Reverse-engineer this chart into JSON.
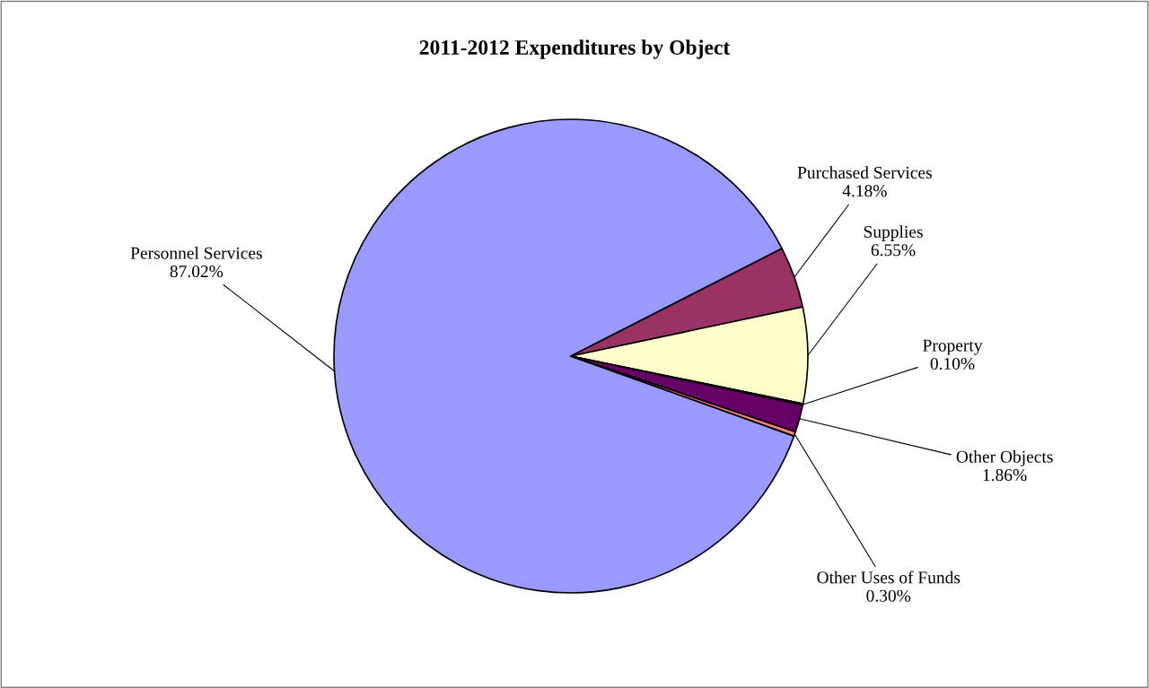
{
  "chart_data": {
    "type": "pie",
    "title": "2011-2012 Expenditures by Object",
    "categories": [
      "Personnel Services",
      "Purchased Services",
      "Supplies",
      "Property",
      "Other Objects",
      "Other Uses of Funds"
    ],
    "values": [
      87.02,
      4.18,
      6.55,
      0.1,
      1.86,
      0.3
    ],
    "colors": [
      "#9999ff",
      "#993366",
      "#ffffcc",
      "#ccffff",
      "#660066",
      "#ff8080"
    ],
    "value_labels": [
      "87.02%",
      "4.18%",
      "6.55%",
      "0.10%",
      "1.86%",
      "0.30%"
    ],
    "legend": false
  }
}
